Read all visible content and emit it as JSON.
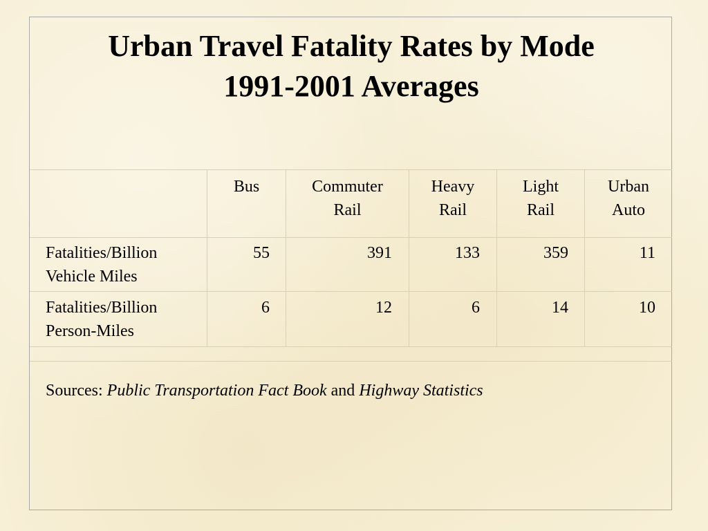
{
  "title": {
    "line1": "Urban Travel Fatality Rates by Mode",
    "line2": "1991-2001 Averages"
  },
  "table": {
    "columns": [
      {
        "line1": "Bus",
        "line2": ""
      },
      {
        "line1": "Commuter",
        "line2": "Rail"
      },
      {
        "line1": "Heavy",
        "line2": "Rail"
      },
      {
        "line1": "Light",
        "line2": "Rail"
      },
      {
        "line1": "Urban",
        "line2": "Auto"
      }
    ],
    "rows": [
      {
        "label_line1": "Fatalities/Billion",
        "label_line2": "Vehicle Miles",
        "values": [
          "55",
          "391",
          "133",
          "359",
          "11"
        ]
      },
      {
        "label_line1": "Fatalities/Billion",
        "label_line2": "Person-Miles",
        "values": [
          "6",
          "12",
          "6",
          "14",
          "10"
        ]
      }
    ]
  },
  "sources": {
    "prefix": "Sources: ",
    "book1": "Public Transportation Fact Book",
    "conjunction": " and ",
    "book2": "Highway Statistics"
  },
  "colors": {
    "background": "#f7efd6",
    "frame_border": "#a8a8a8",
    "grid_line": "#d8cfb4"
  }
}
